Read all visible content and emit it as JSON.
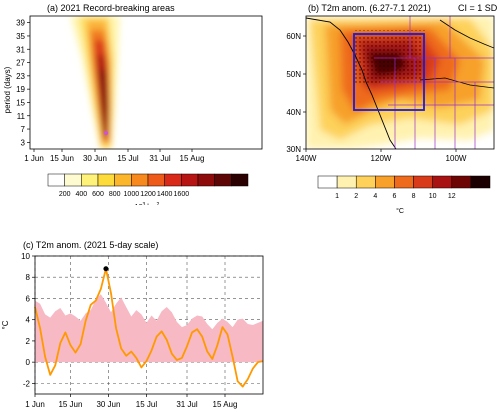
{
  "chart_data": [
    {
      "type": "heatmap",
      "title": "(a) 2021 Record-breaking areas",
      "ylabel": "period (days)",
      "xticks": [
        "1 Jun",
        "15 Jun",
        "30 Jun",
        "15 Jul",
        "31 Jul",
        "15 Aug"
      ],
      "yticks": [
        3,
        7,
        11,
        15,
        19,
        23,
        27,
        31,
        35,
        39
      ],
      "ylim": [
        1,
        41
      ],
      "colorbar": {
        "ticks": [
          "200",
          "400",
          "600",
          "800",
          "1000",
          "1200",
          "1400",
          "1600"
        ],
        "unit": "10",
        "unit_sup": "3",
        "unit_tail": " km",
        "unit_tail_sup": "2",
        "colors": [
          "#ffffff",
          "#fffbd0",
          "#fff27a",
          "#fddb3a",
          "#fcb62c",
          "#f7891f",
          "#ee5a1a",
          "#d92918",
          "#b71414",
          "#8e0b0b",
          "#5e0505",
          "#2a0000"
        ]
      },
      "peak": {
        "date": "30 Jun",
        "period": 5
      }
    },
    {
      "type": "heatmap",
      "title": "(b) T2m anom. (6.27-7.1 2021)",
      "annotation": "CI = 1 SD",
      "xticks": [
        "140W",
        "120W",
        "100W"
      ],
      "yticks": [
        "30N",
        "40N",
        "50N",
        "60N"
      ],
      "colorbar": {
        "ticks": [
          "1",
          "2",
          "4",
          "6",
          "8",
          "10",
          "12"
        ],
        "unit": "°C",
        "colors": [
          "#ffffff",
          "#fff2b0",
          "#fdd15a",
          "#f7a02a",
          "#ee6b1e",
          "#d93a1a",
          "#a81212",
          "#6e0505",
          "#1a0000"
        ]
      }
    },
    {
      "type": "area",
      "title": "(c) T2m anom. (2021 5-day scale)",
      "ylabel": "°C",
      "xticks": [
        "1 Jun",
        "15 Jun",
        "30 Jun",
        "15 Jul",
        "31 Jul",
        "15 Aug"
      ],
      "yticks": [
        "-2",
        "0",
        "2",
        "4",
        "6",
        "8",
        "10"
      ],
      "ylim": [
        -3,
        10
      ],
      "x": [
        1,
        3,
        5,
        7,
        9,
        11,
        13,
        15,
        17,
        19,
        21,
        23,
        25,
        27,
        29,
        31,
        33,
        35,
        37,
        39,
        41,
        43,
        45,
        47,
        49,
        51,
        53,
        55,
        57,
        59,
        61,
        63,
        65,
        67,
        69,
        71,
        73,
        75,
        77,
        79,
        81,
        83,
        85,
        87,
        89,
        91
      ],
      "series": [
        {
          "values": [
            5.2,
            3.2,
            0.5,
            -1.2,
            -0.3,
            1.8,
            2.8,
            1.6,
            0.9,
            1.7,
            3.9,
            5.4,
            5.8,
            6.9,
            8.8,
            6.5,
            3.2,
            1.3,
            0.6,
            1.0,
            0.4,
            -0.5,
            0.1,
            1.1,
            2.4,
            2.9,
            2.1,
            0.8,
            0.2,
            0.4,
            1.5,
            2.8,
            3.1,
            2.4,
            1.0,
            0.3,
            1.6,
            3.3,
            2.6,
            0.5,
            -1.8,
            -2.3,
            -1.6,
            -0.6,
            0.0,
            0.1
          ],
          "color": "#ff9900"
        },
        {
          "values": [
            5.8,
            5.5,
            4.5,
            4.2,
            4.8,
            5.1,
            4.4,
            4.6,
            4.3,
            3.9,
            4.6,
            4.9,
            5.9,
            6.4,
            5.6,
            4.7,
            5.5,
            6.1,
            5.2,
            4.3,
            4.9,
            4.5,
            3.7,
            4.4,
            3.9,
            4.8,
            5.2,
            4.7,
            3.8,
            3.3,
            3.5,
            4.1,
            4.4,
            4.3,
            3.6,
            3.1,
            3.7,
            4.1,
            3.8,
            3.3,
            4.0,
            4.1,
            3.6,
            3.5,
            3.7,
            3.9
          ],
          "color": "#f7b9c3"
        }
      ],
      "peak_marker": {
        "x": 29,
        "y": 8.8
      }
    }
  ]
}
